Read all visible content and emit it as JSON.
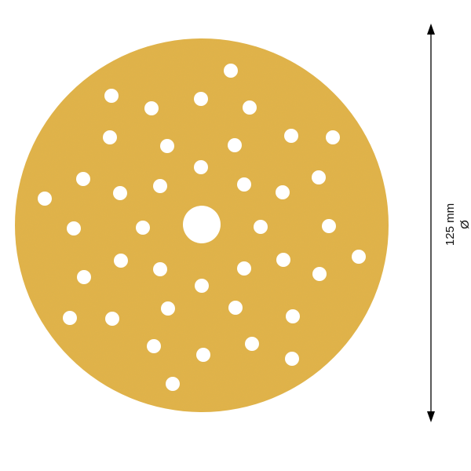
{
  "product": {
    "disc_color": "#E2B449",
    "hole_count": 41
  },
  "dimension": {
    "value": "125 mm",
    "symbol": "Ø"
  }
}
